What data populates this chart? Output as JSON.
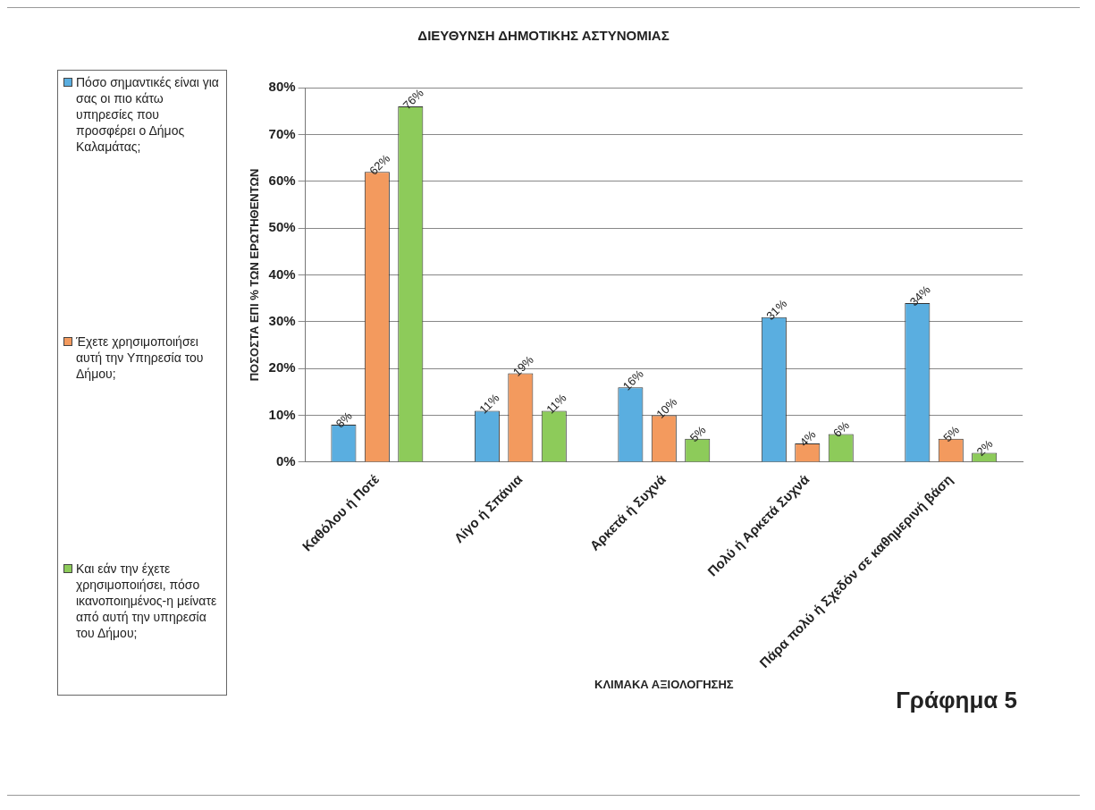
{
  "chart_data": {
    "type": "bar",
    "title": "ΔΙΕΥΘΥΝΣΗ ΔΗΜΟΤΙΚΗΣ ΑΣΤΥΝΟΜΙΑΣ",
    "xlabel": "ΚΛΙΜΑΚΑ ΑΞΙΟΛΟΓΗΣΗΣ",
    "ylabel": "ΠΟΣΟΣΤΑ ΕΠΙ % ΤΩΝ ΕΡΩΤΗΘΕΝΤΩΝ",
    "annotations": [
      "Γράφημα 5"
    ],
    "categories": [
      "Καθόλου ή Ποτέ",
      "Λίγο ή Σπάνια",
      "Αρκετά ή Συχνά",
      "Πολύ ή Αρκετά Συχνά",
      "Πάρα πολύ ή Σχεδόν σε καθημερινή βάση"
    ],
    "series": [
      {
        "name": "Πόσο σημαντικές είναι για σας οι πιο κάτω υπηρεσίες που προσφέρει ο Δήμος Καλαμάτας;",
        "color": "#5aaee0",
        "values": [
          8,
          11,
          16,
          31,
          34
        ],
        "value_labels": [
          "8%",
          "11%",
          "16%",
          "31%",
          "34%"
        ]
      },
      {
        "name": "Έχετε χρησιμοποιήσει αυτή την Υπηρεσία του Δήμου;",
        "color": "#f39a5e",
        "values": [
          62,
          19,
          10,
          4,
          5
        ],
        "value_labels": [
          "62%",
          "19%",
          "10%",
          "4%",
          "5%"
        ]
      },
      {
        "name": "Και εάν την έχετε χρησιμοποιήσει, πόσο ικανοποιημένος-η μείνατε από αυτή την υπηρεσία του Δήμου;",
        "color": "#8dcb5a",
        "values": [
          76,
          11,
          5,
          6,
          2
        ],
        "value_labels": [
          "76%",
          "11%",
          "5%",
          "6%",
          "2%"
        ]
      }
    ],
    "ylim": [
      0,
      80
    ],
    "yticks": [
      {
        "value": 0,
        "label": "0%"
      },
      {
        "value": 10,
        "label": "10%"
      },
      {
        "value": 20,
        "label": "20%"
      },
      {
        "value": 30,
        "label": "30%"
      },
      {
        "value": 40,
        "label": "40%"
      },
      {
        "value": 50,
        "label": "50%"
      },
      {
        "value": 60,
        "label": "60%"
      },
      {
        "value": 70,
        "label": "70%"
      },
      {
        "value": 80,
        "label": "80%"
      }
    ],
    "grid": "y",
    "legend": "left"
  }
}
